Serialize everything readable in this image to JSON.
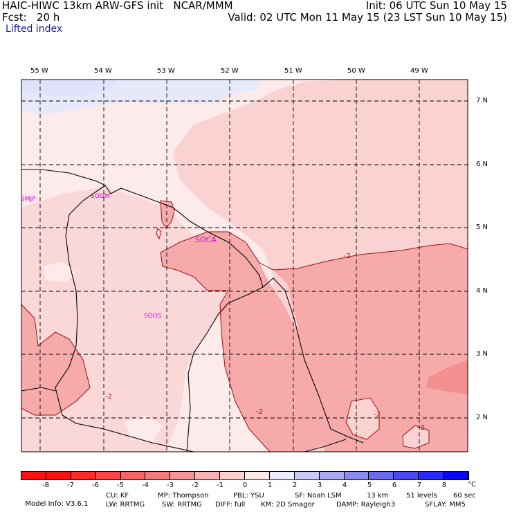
{
  "header": {
    "model_line": "HAIC-HIWC 13km ARW-GFS init   NCAR/MMM",
    "fcst_line": "Fcst:   20 h",
    "init_line": "Init: 06 UTC Sun 10 May 15",
    "valid_line": "Valid: 02 UTC Mon 11 May 15 (23 LST Sun 10 May 15)",
    "field_name": "Lifted index"
  },
  "map": {
    "lon_labels": [
      "55 W",
      "54 W",
      "53 W",
      "52 W",
      "51 W",
      "50 W",
      "49 W"
    ],
    "lat_labels": [
      "7 N",
      "6 N",
      "5 N",
      "4 N",
      "3 N",
      "2 N"
    ],
    "stations": [
      "SMJP",
      "SOGM",
      "SOCA",
      "SOOS"
    ],
    "contour_labels": [
      "-2",
      "-2",
      "-2",
      "-2",
      "-2"
    ],
    "colors": {
      "very_light": "#fdeaea",
      "light": "#fbd2d2",
      "medium": "#f7aaaa",
      "strong": "#f29090",
      "blue_tint": "#e7e9fb",
      "station": "#e000e0",
      "contour": "#9a1010"
    }
  },
  "colorbar": {
    "ticks": [
      "-8",
      "-7",
      "-6",
      "-5",
      "-4",
      "-3",
      "-2",
      "-1",
      "0",
      "1",
      "2",
      "3",
      "4",
      "5",
      "6",
      "7",
      "8"
    ],
    "unit": "°C",
    "colors": [
      "#ff1010",
      "#ff2a2a",
      "#fc4646",
      "#f86464",
      "#f47a7a",
      "#f39595",
      "#f6b2b2",
      "#fad0d0",
      "#fde8e8",
      "#ececfc",
      "#cacaf6",
      "#aaaaf2",
      "#8a8af0",
      "#6a6aee",
      "#4a4af0",
      "#2a2af4",
      "#0808f8"
    ]
  },
  "footer": {
    "line1": [
      "Model Info: V3.6.1",
      "CU: KF",
      "MP: Thompson",
      "PBL: YSU",
      "SF: Noah LSM",
      "13 km",
      "51 levels",
      "60 sec"
    ],
    "line2": [
      "LW: RRTMG",
      "SW: RRTMG",
      "DIFF: full",
      "KM: 2D Smagor",
      "DAMP: Rayleigh3",
      "SFLAY: MM5"
    ]
  }
}
